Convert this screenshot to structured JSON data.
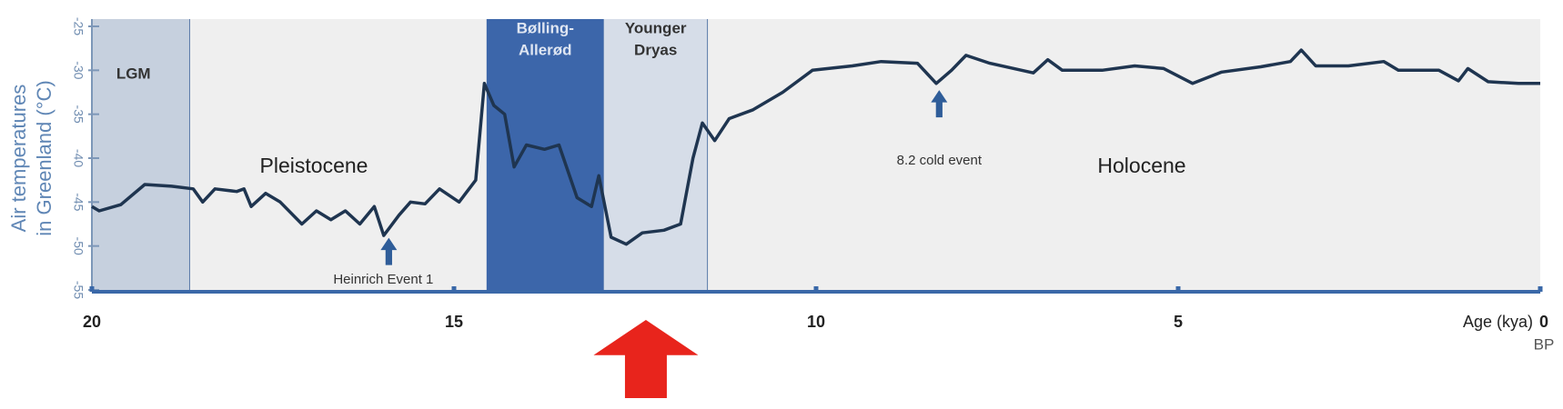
{
  "chart_data": {
    "type": "line",
    "y_label_lines": [
      "Air temperatures",
      "in Greenland (°C)"
    ],
    "x_label": "Age (kya)",
    "x_suffix_label": "BP",
    "xlim": [
      20,
      0
    ],
    "xticks": [
      20,
      15,
      10,
      5,
      0
    ],
    "ylim": [
      -25,
      -55
    ],
    "yticks": [
      -25,
      -30,
      -35,
      -40,
      -45,
      -50,
      -55
    ],
    "x": [
      20,
      19.9,
      19.6,
      19.27,
      18.9,
      18.6,
      18.47,
      18.3,
      18.0,
      17.9,
      17.8,
      17.6,
      17.4,
      17.1,
      16.9,
      16.7,
      16.5,
      16.3,
      16.1,
      15.97,
      15.76,
      15.6,
      15.4,
      15.2,
      14.93,
      14.7,
      14.58,
      14.45,
      14.3,
      14.17,
      14.0,
      13.75,
      13.55,
      13.3,
      13.1,
      13.0,
      12.83,
      12.62,
      12.4,
      12.1,
      11.87,
      11.7,
      11.57,
      11.4,
      11.2,
      10.87,
      10.46,
      10.05,
      9.5,
      9.1,
      8.6,
      8.34,
      8.13,
      7.93,
      7.6,
      7.0,
      6.8,
      6.6,
      6.05,
      5.6,
      5.2,
      4.8,
      4.4,
      3.86,
      3.45,
      3.3,
      3.1,
      2.65,
      2.16,
      1.96,
      1.4,
      1.13,
      1.0,
      0.72,
      0.3,
      0
    ],
    "series": [
      {
        "color": "#1f3550",
        "values": [
          -45.5,
          -46,
          -45.3,
          -43,
          -43.2,
          -43.5,
          -45,
          -43.5,
          -43.8,
          -43.5,
          -45.5,
          -44,
          -45,
          -47.5,
          -46,
          -47,
          -46,
          -47.5,
          -45.5,
          -48.8,
          -46.5,
          -45,
          -45.2,
          -43.5,
          -45,
          -42.5,
          -31.5,
          -34,
          -35,
          -41,
          -38.5,
          -39,
          -38.5,
          -44.5,
          -45.5,
          -42,
          -49,
          -49.8,
          -48.5,
          -48.2,
          -47.5,
          -40,
          -36,
          -38,
          -35.5,
          -34.5,
          -32.5,
          -30,
          -29.5,
          -29,
          -29.2,
          -31.5,
          -30,
          -28.3,
          -29.2,
          -30.3,
          -28.8,
          -30,
          -30,
          -29.5,
          -29.8,
          -31.5,
          -30.2,
          -29.6,
          -29,
          -27.7,
          -29.5,
          -29.5,
          -29,
          -30,
          -30,
          -31.2,
          -29.8,
          -31.3,
          -31.5,
          -31.5
        ]
      }
    ],
    "regions": [
      {
        "label_lines": [
          "LGM"
        ],
        "start": 20,
        "end": 18.65,
        "color": "#c6d0de"
      },
      {
        "label_lines": [
          "Bølling-",
          "Allerød"
        ],
        "start": 14.55,
        "end": 12.93,
        "color": "#3c66aa"
      },
      {
        "label_lines": [
          "Younger",
          "Dryas"
        ],
        "start": 12.93,
        "end": 11.5,
        "color": "#d6dde8"
      }
    ],
    "period_labels": [
      "Pleistocene",
      "Holocene"
    ],
    "events": [
      {
        "text": "Heinrich Event 1",
        "x": 15.9
      },
      {
        "text": "8.2 cold event",
        "x": 8.3
      }
    ],
    "highlight_arrow": {
      "x": 12.35,
      "color": "#e8241c"
    }
  }
}
